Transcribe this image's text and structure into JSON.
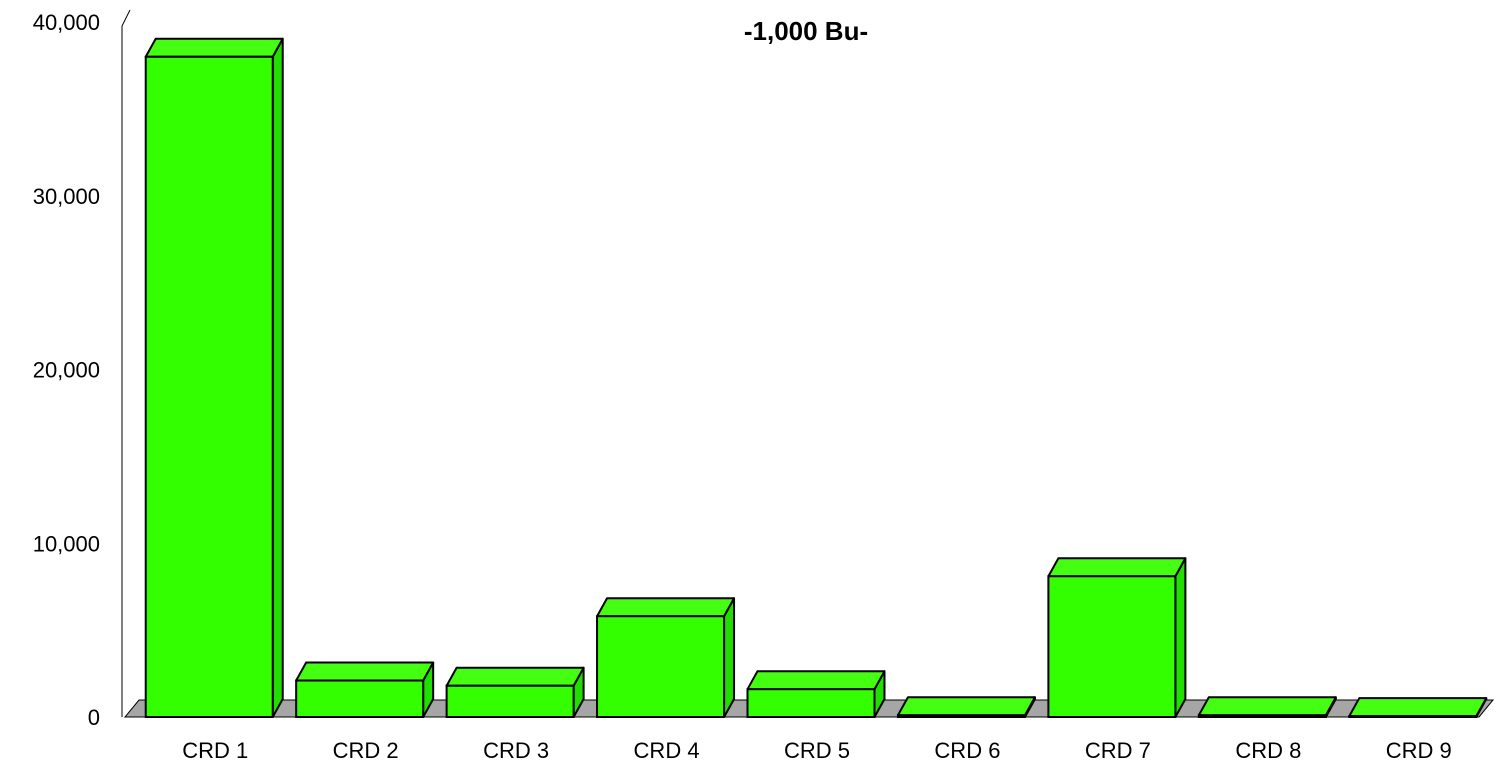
{
  "chart_data": {
    "type": "bar",
    "title": "-1,000 Bu-",
    "xlabel": "",
    "ylabel": "",
    "categories": [
      "CRD 1",
      "CRD 2",
      "CRD 3",
      "CRD 4",
      "CRD 5",
      "CRD 6",
      "CRD 7",
      "CRD 8",
      "CRD 9"
    ],
    "values": [
      38000,
      2100,
      1800,
      5800,
      1600,
      100,
      8100,
      100,
      50
    ],
    "ylim": [
      0,
      40000
    ],
    "yticks": [
      "0",
      "10,000",
      "20,000",
      "30,000",
      "40,000"
    ],
    "grid": false,
    "legend": "none",
    "style": "3d",
    "colors": {
      "bar_front": "#33ff00",
      "bar_top": "#44ff11",
      "bar_side": "#22dd00",
      "floor": "#a6a6a6"
    }
  }
}
